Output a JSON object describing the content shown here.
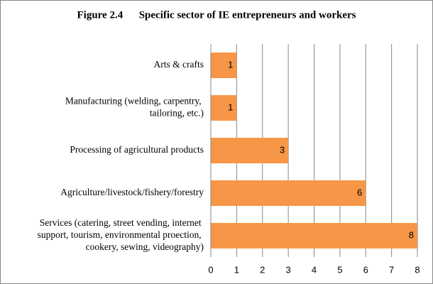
{
  "chart_data": {
    "type": "bar",
    "orientation": "horizontal",
    "title": "Figure 2.4      Specific sector of IE entrepreneurs and workers",
    "categories": [
      "Arts & crafts",
      "Manufacturing (welding, carpentry, tailoring, etc.)",
      "Processing of agricultural products",
      "Agriculture/livestock/fishery/forestry",
      "Services (catering, street vending, internet support, tourism, environmental proection, cookery, sewing, videography)"
    ],
    "values": [
      1,
      1,
      3,
      6,
      8
    ],
    "color": "#f79646",
    "xlim": [
      0,
      8
    ],
    "xticks": [
      0,
      1,
      2,
      3,
      4,
      5,
      6,
      7,
      8
    ],
    "grid": true
  }
}
